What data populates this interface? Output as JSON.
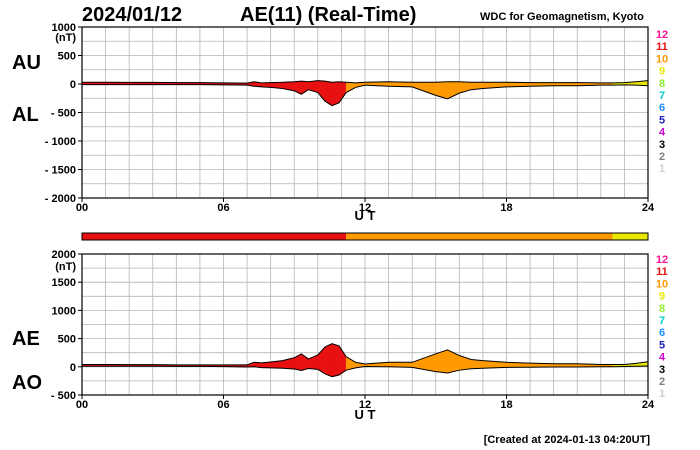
{
  "header": {
    "date": "2024/01/12",
    "title": "AE(11) (Real-Time)",
    "source": "WDC for Geomagnetism, Kyoto"
  },
  "footer": {
    "created": "[Created at 2024-01-13 04:20UT]"
  },
  "activity_levels": [
    {
      "label": "12",
      "color": "#ff1493"
    },
    {
      "label": "11",
      "color": "#e81010"
    },
    {
      "label": "10",
      "color": "#ff9900"
    },
    {
      "label": "9",
      "color": "#e8e800"
    },
    {
      "label": "8",
      "color": "#90ee30"
    },
    {
      "label": "7",
      "color": "#00cccc"
    },
    {
      "label": "6",
      "color": "#1e90ff"
    },
    {
      "label": "5",
      "color": "#2020c0"
    },
    {
      "label": "4",
      "color": "#d000d0"
    },
    {
      "label": "3",
      "color": "#000000"
    },
    {
      "label": "2",
      "color": "#808080"
    },
    {
      "label": "1",
      "color": "#cfcfcf"
    }
  ],
  "chart_data": [
    {
      "type": "area",
      "panel": "AU/AL",
      "labels": [
        "AU",
        "AL"
      ],
      "unit": "(nT)",
      "xlabel": "U T",
      "ylim": [
        -2000,
        1000
      ],
      "yticks": [
        1000,
        500,
        0,
        -500,
        -1000,
        -1500,
        -2000
      ],
      "ytick_labels": [
        "1000",
        "500",
        "0",
        "- 500",
        "- 1000",
        "- 1500",
        "- 2000"
      ],
      "xlim": [
        0,
        24
      ],
      "xticks": [
        0,
        6,
        12,
        18,
        24
      ],
      "xtick_labels": [
        "00",
        "06",
        "12",
        "18",
        "24"
      ],
      "grid": true,
      "series": [
        {
          "name": "AU",
          "x": [
            0,
            1,
            2,
            3,
            4,
            5,
            6,
            7,
            7.3,
            7.6,
            8,
            8.5,
            9,
            9.3,
            9.6,
            10,
            10.3,
            10.6,
            10.9,
            11.2,
            11.6,
            12,
            13,
            14,
            15,
            15.5,
            16,
            16.5,
            17,
            18,
            19,
            20,
            21,
            22,
            22.5,
            23,
            23.5,
            24
          ],
          "values": [
            30,
            30,
            28,
            28,
            25,
            25,
            20,
            15,
            40,
            20,
            25,
            30,
            40,
            50,
            40,
            60,
            50,
            30,
            40,
            30,
            20,
            30,
            40,
            30,
            30,
            40,
            40,
            30,
            30,
            30,
            25,
            25,
            25,
            20,
            20,
            25,
            40,
            60
          ]
        },
        {
          "name": "AL",
          "x": [
            0,
            1,
            2,
            3,
            4,
            5,
            6,
            7,
            7.3,
            7.6,
            8,
            8.5,
            9,
            9.3,
            9.6,
            10,
            10.3,
            10.6,
            10.9,
            11.2,
            11.6,
            12,
            13,
            14,
            15,
            15.5,
            16,
            16.5,
            17,
            18,
            19,
            20,
            21,
            22,
            22.5,
            23,
            23.5,
            24
          ],
          "values": [
            -10,
            -10,
            -10,
            -10,
            -10,
            -10,
            -15,
            -20,
            -40,
            -50,
            -60,
            -80,
            -120,
            -180,
            -100,
            -150,
            -300,
            -380,
            -330,
            -150,
            -60,
            -20,
            -40,
            -50,
            -200,
            -260,
            -160,
            -100,
            -80,
            -50,
            -40,
            -30,
            -30,
            -20,
            -20,
            -15,
            -20,
            -30
          ]
        }
      ]
    },
    {
      "type": "area",
      "panel": "AE/AO",
      "labels": [
        "AE",
        "AO"
      ],
      "unit": "(nT)",
      "xlabel": "U T",
      "ylim": [
        -500,
        2000
      ],
      "yticks": [
        2000,
        1500,
        1000,
        500,
        0,
        -500
      ],
      "ytick_labels": [
        "2000",
        "1500",
        "1000",
        "500",
        "0",
        "- 500"
      ],
      "xlim": [
        0,
        24
      ],
      "xticks": [
        0,
        6,
        12,
        18,
        24
      ],
      "xtick_labels": [
        "00",
        "06",
        "12",
        "18",
        "24"
      ],
      "grid": true,
      "series": [
        {
          "name": "AE",
          "x": [
            0,
            1,
            2,
            3,
            4,
            5,
            6,
            7,
            7.3,
            7.6,
            8,
            8.5,
            9,
            9.3,
            9.6,
            10,
            10.3,
            10.6,
            10.9,
            11.2,
            11.6,
            12,
            13,
            14,
            15,
            15.5,
            16,
            16.5,
            17,
            18,
            19,
            20,
            21,
            22,
            22.5,
            23,
            23.5,
            24
          ],
          "values": [
            40,
            40,
            38,
            38,
            35,
            35,
            35,
            35,
            80,
            70,
            85,
            110,
            160,
            230,
            140,
            210,
            350,
            410,
            370,
            180,
            80,
            50,
            80,
            80,
            230,
            300,
            200,
            130,
            110,
            80,
            65,
            55,
            55,
            40,
            40,
            40,
            60,
            90
          ]
        },
        {
          "name": "AO",
          "x": [
            0,
            1,
            2,
            3,
            4,
            5,
            6,
            7,
            7.3,
            7.6,
            8,
            8.5,
            9,
            9.3,
            9.6,
            10,
            10.3,
            10.6,
            10.9,
            11.2,
            11.6,
            12,
            13,
            14,
            15,
            15.5,
            16,
            16.5,
            17,
            18,
            19,
            20,
            21,
            22,
            22.5,
            23,
            23.5,
            24
          ],
          "values": [
            10,
            10,
            9,
            9,
            8,
            8,
            3,
            -3,
            0,
            -15,
            -18,
            -25,
            -40,
            -65,
            -30,
            -45,
            -125,
            -175,
            -145,
            -60,
            -20,
            5,
            0,
            -10,
            -85,
            -110,
            -60,
            -35,
            -25,
            -10,
            -8,
            -3,
            -3,
            0,
            0,
            5,
            10,
            15
          ]
        }
      ]
    }
  ],
  "level_bar": {
    "segments": [
      {
        "from": 0,
        "to": 11.2,
        "level": "11"
      },
      {
        "from": 11.2,
        "to": 22.5,
        "level": "10"
      },
      {
        "from": 22.5,
        "to": 24,
        "level": "9"
      }
    ]
  }
}
